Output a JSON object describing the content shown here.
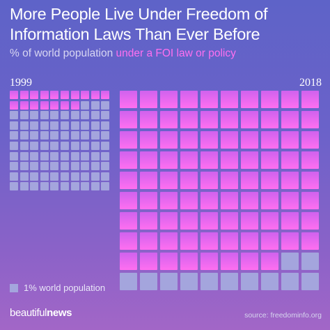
{
  "title": "More People Live Under Freedom of Information Laws Than Ever Before",
  "subtitle_prefix": "% of world population",
  "subtitle_highlight": "under a FOI law or policy",
  "legend_label": "1% world population",
  "brand_light": "beautiful",
  "brand_bold": "news",
  "source": "source: freedominfo.org",
  "colors": {
    "background_top": "#5e63c8",
    "background_bottom": "#a266c7",
    "under_law_top": "#d062ee",
    "under_law_bottom": "#ff6ff0",
    "other": "#a4a5dd",
    "highlight_text": "#ff6ff0"
  },
  "chart_data": {
    "type": "waffle",
    "unit": "1% world population",
    "grid": {
      "rows": 10,
      "cols": 10
    },
    "series": [
      {
        "name": "under a FOI law or policy",
        "color": "#ff6ff0"
      },
      {
        "color": "#a4a5dd"
      }
    ],
    "panels": [
      {
        "label": "1999",
        "under_law": 17,
        "total": 100
      },
      {
        "label": "2018",
        "under_law": 88,
        "total": 100
      }
    ]
  }
}
